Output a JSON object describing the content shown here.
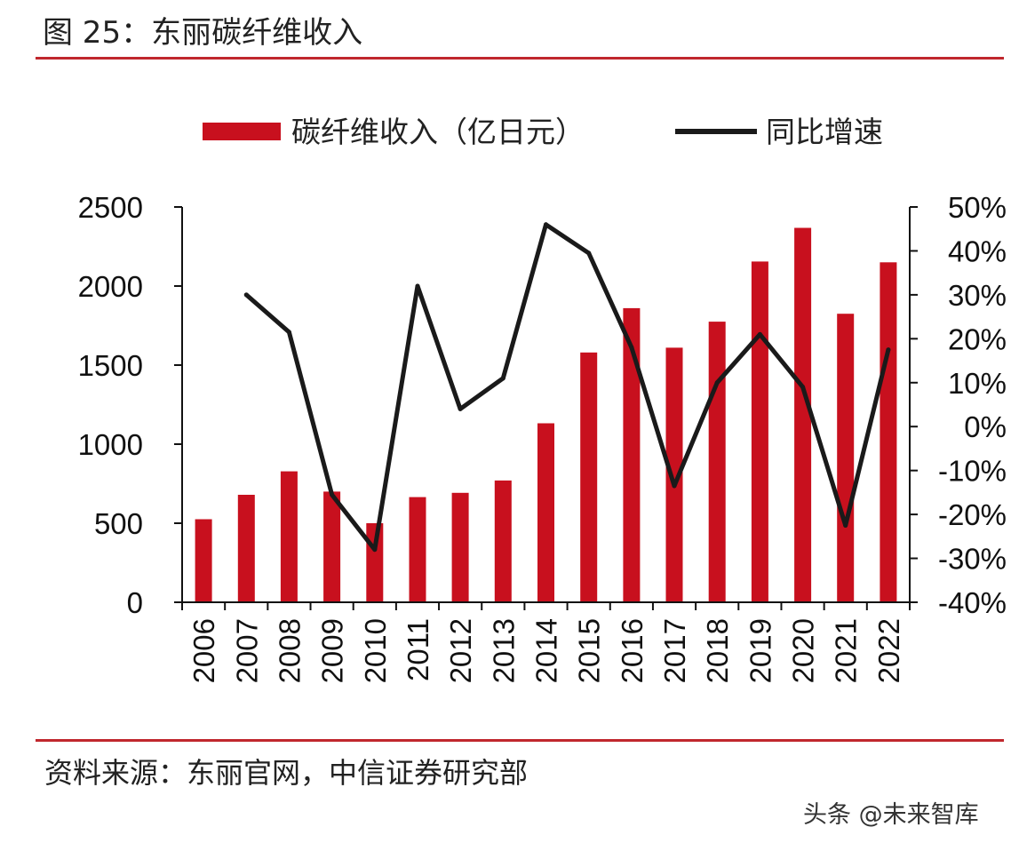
{
  "figure": {
    "title": "图 25：东丽碳纤维收入",
    "source": "资料来源：东丽官网，中信证券研究部",
    "watermark": "头条 @未来智库",
    "rule_color": "#c0272d"
  },
  "chart_data": {
    "type": "bar",
    "title": "图 25：东丽碳纤维收入",
    "categories": [
      "2006",
      "2007",
      "2008",
      "2009",
      "2010",
      "2011",
      "2012",
      "2013",
      "2014",
      "2015",
      "2016",
      "2017",
      "2018",
      "2019",
      "2020",
      "2021",
      "2022"
    ],
    "series": [
      {
        "name": "碳纤维收入（亿日元）",
        "type": "bar",
        "axis": "left",
        "color": "#c8101e",
        "values": [
          525,
          680,
          828,
          700,
          500,
          665,
          692,
          770,
          1132,
          1580,
          1860,
          1610,
          1775,
          2155,
          2368,
          1825,
          2150
        ]
      },
      {
        "name": "同比增速",
        "type": "line",
        "axis": "right",
        "color": "#1a1a1a",
        "values": [
          null,
          0.3,
          0.215,
          -0.155,
          -0.28,
          0.32,
          0.04,
          0.11,
          0.46,
          0.395,
          0.18,
          -0.135,
          0.1,
          0.21,
          0.09,
          -0.225,
          0.175
        ]
      }
    ],
    "y_left": {
      "min": 0,
      "max": 2500,
      "ticks": [
        0,
        500,
        1000,
        1500,
        2000,
        2500
      ],
      "tick_labels": [
        "0",
        "500",
        "1000",
        "1500",
        "2000",
        "2500"
      ]
    },
    "y_right": {
      "min": -0.4,
      "max": 0.5,
      "ticks": [
        -0.4,
        -0.3,
        -0.2,
        -0.1,
        0.0,
        0.1,
        0.2,
        0.3,
        0.4,
        0.5
      ],
      "tick_labels": [
        "-40%",
        "-30%",
        "-20%",
        "-10%",
        "0%",
        "10%",
        "20%",
        "30%",
        "40%",
        "50%"
      ]
    },
    "grid": false,
    "legend_position": "top"
  }
}
